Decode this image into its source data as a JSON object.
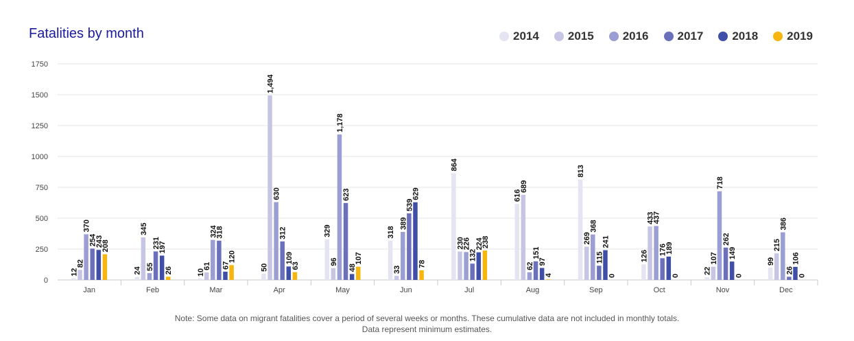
{
  "chart_data": {
    "type": "bar",
    "title": "Fatalities by month",
    "categories": [
      "Jan",
      "Feb",
      "Mar",
      "Apr",
      "May",
      "Jun",
      "Jul",
      "Aug",
      "Sep",
      "Oct",
      "Nov",
      "Dec"
    ],
    "ylim": [
      0,
      1750
    ],
    "yticks": [
      "0",
      "250",
      "500",
      "750",
      "1000",
      "1250",
      "1500",
      "1750"
    ],
    "grid": true,
    "legend_position": "top-right",
    "series": [
      {
        "name": "2014",
        "color": "#e4e4f3",
        "values": [
          12,
          24,
          10,
          50,
          329,
          318,
          864,
          616,
          813,
          126,
          22,
          99
        ],
        "labels": [
          "12",
          "24",
          "10",
          "50",
          "329",
          "318",
          "864",
          "616",
          "813",
          "126",
          "22",
          "99"
        ]
      },
      {
        "name": "2015",
        "color": "#c6c6e4",
        "values": [
          82,
          345,
          61,
          1494,
          96,
          33,
          230,
          689,
          269,
          433,
          107,
          215
        ],
        "labels": [
          "82",
          "345",
          "61",
          "1,494",
          "96",
          "33",
          "230",
          "689",
          "269",
          "433",
          "107",
          "215"
        ]
      },
      {
        "name": "2016",
        "color": "#9b9ed2",
        "values": [
          370,
          55,
          324,
          630,
          1178,
          389,
          226,
          62,
          368,
          437,
          718,
          386
        ],
        "labels": [
          "370",
          "55",
          "324",
          "630",
          "1,178",
          "389",
          "226",
          "62",
          "368",
          "437",
          "718",
          "386"
        ]
      },
      {
        "name": "2017",
        "color": "#6b70bb",
        "values": [
          254,
          231,
          318,
          312,
          623,
          539,
          132,
          151,
          115,
          176,
          262,
          26
        ],
        "labels": [
          "254",
          "231",
          "318",
          "312",
          "623",
          "539",
          "132",
          "151",
          "115",
          "176",
          "262",
          "26"
        ]
      },
      {
        "name": "2018",
        "color": "#3f4ea6",
        "values": [
          243,
          197,
          67,
          109,
          48,
          629,
          224,
          97,
          241,
          189,
          149,
          106
        ],
        "labels": [
          "243",
          "197",
          "67",
          "109",
          "48",
          "629",
          "224",
          "97",
          "241",
          "189",
          "149",
          "106"
        ]
      },
      {
        "name": "2019",
        "color": "#f6b60f",
        "values": [
          208,
          26,
          120,
          63,
          107,
          78,
          238,
          4,
          0,
          0,
          0,
          0
        ],
        "labels": [
          "208",
          "26",
          "120",
          "63",
          "107",
          "78",
          "238",
          "4",
          "0",
          "0",
          "0",
          "0"
        ]
      }
    ]
  },
  "note_line1": "Note: Some data on migrant fatalities cover a period of several weeks or months. These cumulative data are not included in monthly totals.",
  "note_line2": "Data represent minimum estimates."
}
